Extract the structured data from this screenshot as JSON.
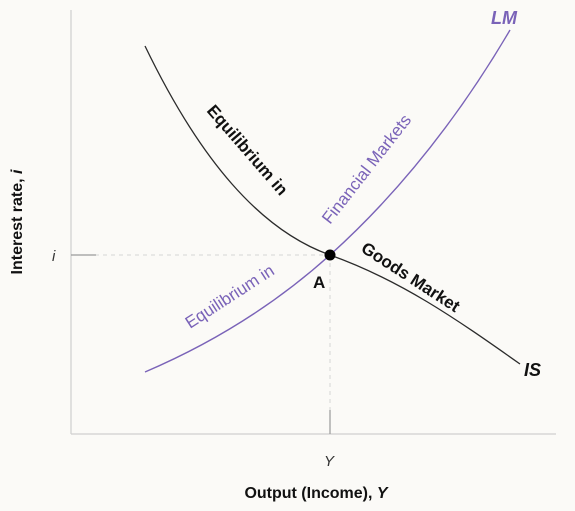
{
  "diagram": {
    "x_axis_title_main": "Output (Income),",
    "x_axis_title_var": "Y",
    "y_axis_title_main": "Interest rate,",
    "y_axis_title_var": "i",
    "x_tick_label": "Y",
    "y_tick_label": "i",
    "equilibrium_point_label": "A",
    "is_curve_name": "IS",
    "lm_curve_name": "LM",
    "is_label_upper": "Equilibrium in",
    "is_label_lower": "Goods Market",
    "lm_label_lower": "Equilibrium in",
    "lm_label_upper": "Financial Markets",
    "colors": {
      "is_curve": "#2b2b2b",
      "lm_curve": "#7a63b8",
      "point": "#000000"
    }
  }
}
